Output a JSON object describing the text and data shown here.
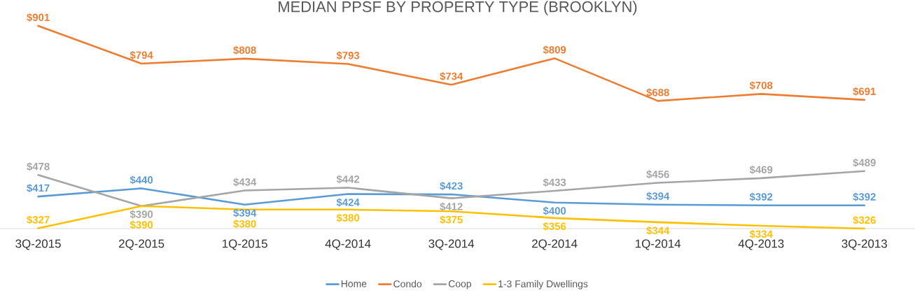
{
  "chart_data": {
    "type": "line",
    "title": "MEDIAN PPSF BY PROPERTY TYPE (BROOKLYN)",
    "categories": [
      "3Q-2015",
      "2Q-2015",
      "1Q-2015",
      "4Q-2014",
      "3Q-2014",
      "2Q-2014",
      "1Q-2014",
      "4Q-2013",
      "3Q-2013"
    ],
    "legend": "bottom",
    "grid": false,
    "marker": "none",
    "line_style": "solid",
    "series": [
      {
        "name": "Home",
        "color": "#5b9bd5",
        "values": [
          417,
          440,
          394,
          424,
          423,
          400,
          394,
          392,
          392
        ],
        "value_labels": [
          "$417",
          "$440",
          "$394",
          "$424",
          "$423",
          "$400",
          "$394",
          "$392",
          "$392"
        ]
      },
      {
        "name": "Condo",
        "color": "#ed7d31",
        "values": [
          901,
          794,
          808,
          793,
          734,
          809,
          688,
          708,
          691
        ],
        "value_labels": [
          "$901",
          "$794",
          "$808",
          "$793",
          "$734",
          "$809",
          "$688",
          "$708",
          "$691"
        ]
      },
      {
        "name": "Coop",
        "color": "#a5a5a5",
        "values": [
          478,
          390,
          434,
          442,
          412,
          433,
          456,
          469,
          489
        ],
        "value_labels": [
          "$478",
          "$390",
          "$434",
          "$442",
          "$412",
          "$433",
          "$456",
          "$469",
          "$489"
        ]
      },
      {
        "name": "1-3 Family Dwellings",
        "color": "#ffc000",
        "values": [
          327,
          390,
          380,
          380,
          375,
          356,
          344,
          334,
          326
        ],
        "value_labels": [
          "$327",
          "$390",
          "$380",
          "$380",
          "$375",
          "$356",
          "$344",
          "$334",
          "$326"
        ]
      }
    ]
  }
}
